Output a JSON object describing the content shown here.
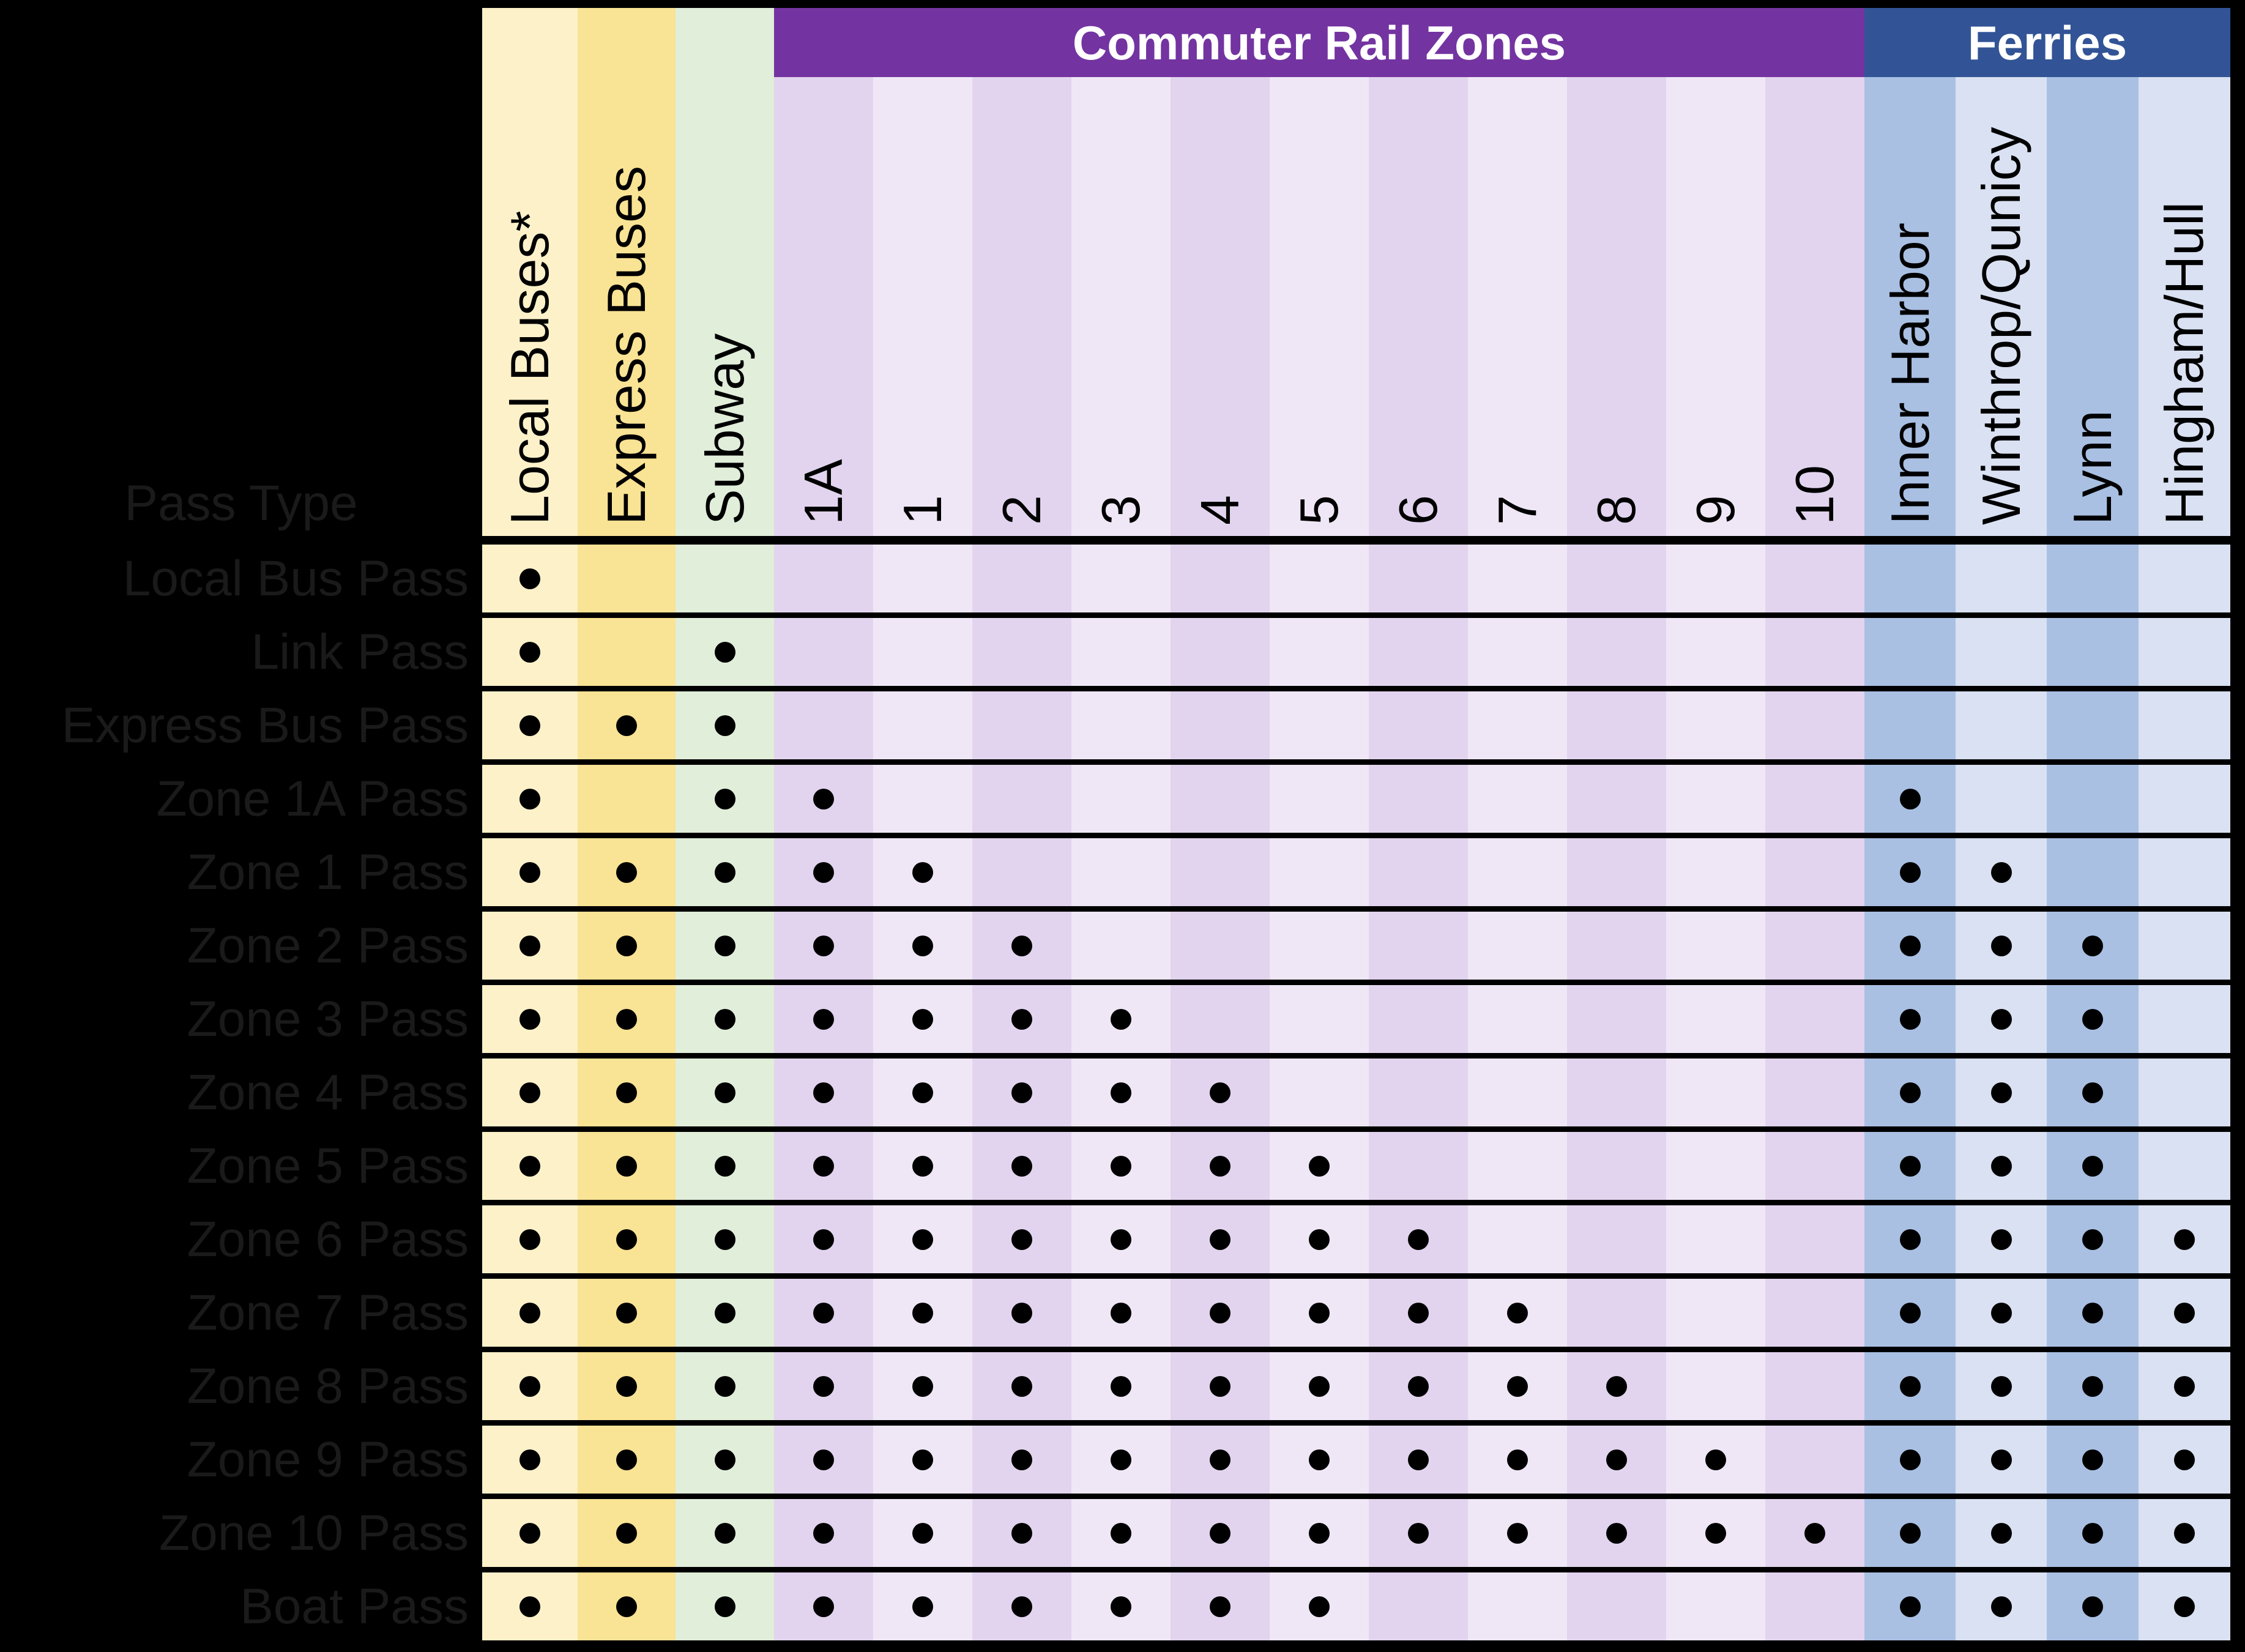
{
  "banners": {
    "rail": "Commuter Rail Zones",
    "ferries": "Ferries"
  },
  "chart_data": {
    "type": "table",
    "row_header": "Pass Type",
    "colors": {
      "background": "#000000",
      "yellow_light": "#FCF1C9",
      "yellow": "#F9E394",
      "green": "#E0EEDA",
      "rail_dark": "#E2D4EE",
      "rail_light": "#EFE7F6",
      "ferry_dark": "#A9C0E3",
      "ferry_light": "#D9E1F2",
      "rail_banner": "#7334A1",
      "ferry_banner": "#325496",
      "dot": "#000000",
      "row_label_text": "#1A1A1A",
      "banner_text": "#FFFFFF"
    },
    "column_groups": [
      {
        "id": "modes",
        "label": ""
      },
      {
        "id": "rail",
        "label": "Commuter Rail Zones"
      },
      {
        "id": "ferry",
        "label": "Ferries"
      }
    ],
    "columns": [
      {
        "id": "local_buses",
        "label": "Local Buses*",
        "group": "modes",
        "shade": "yellow_light"
      },
      {
        "id": "express_buses",
        "label": "Express Buses",
        "group": "modes",
        "shade": "yellow"
      },
      {
        "id": "subway",
        "label": "Subway",
        "group": "modes",
        "shade": "green"
      },
      {
        "id": "zone_1a",
        "label": "1A",
        "group": "rail",
        "shade": "rail_dark"
      },
      {
        "id": "zone_1",
        "label": "1",
        "group": "rail",
        "shade": "rail_light"
      },
      {
        "id": "zone_2",
        "label": "2",
        "group": "rail",
        "shade": "rail_dark"
      },
      {
        "id": "zone_3",
        "label": "3",
        "group": "rail",
        "shade": "rail_light"
      },
      {
        "id": "zone_4",
        "label": "4",
        "group": "rail",
        "shade": "rail_dark"
      },
      {
        "id": "zone_5",
        "label": "5",
        "group": "rail",
        "shade": "rail_light"
      },
      {
        "id": "zone_6",
        "label": "6",
        "group": "rail",
        "shade": "rail_dark"
      },
      {
        "id": "zone_7",
        "label": "7",
        "group": "rail",
        "shade": "rail_light"
      },
      {
        "id": "zone_8",
        "label": "8",
        "group": "rail",
        "shade": "rail_dark"
      },
      {
        "id": "zone_9",
        "label": "9",
        "group": "rail",
        "shade": "rail_light"
      },
      {
        "id": "zone_10",
        "label": "10",
        "group": "rail",
        "shade": "rail_dark"
      },
      {
        "id": "inner_harbor",
        "label": "Inner Harbor",
        "group": "ferry",
        "shade": "ferry_dark"
      },
      {
        "id": "winthrop_quincy",
        "label": "Winthrop/Qunicy",
        "group": "ferry",
        "shade": "ferry_light"
      },
      {
        "id": "lynn",
        "label": "Lynn",
        "group": "ferry",
        "shade": "ferry_dark"
      },
      {
        "id": "hingham_hull",
        "label": "Hingham/Hull",
        "group": "ferry",
        "shade": "ferry_light"
      }
    ],
    "rows": [
      {
        "label": "Local Bus Pass",
        "marks": [
          "local_buses"
        ]
      },
      {
        "label": "Link Pass",
        "marks": [
          "local_buses",
          "subway"
        ]
      },
      {
        "label": "Express Bus Pass",
        "marks": [
          "local_buses",
          "express_buses",
          "subway"
        ]
      },
      {
        "label": "Zone 1A Pass",
        "marks": [
          "local_buses",
          "subway",
          "zone_1a",
          "inner_harbor"
        ]
      },
      {
        "label": "Zone 1 Pass",
        "marks": [
          "local_buses",
          "express_buses",
          "subway",
          "zone_1a",
          "zone_1",
          "inner_harbor",
          "winthrop_quincy"
        ]
      },
      {
        "label": "Zone 2 Pass",
        "marks": [
          "local_buses",
          "express_buses",
          "subway",
          "zone_1a",
          "zone_1",
          "zone_2",
          "inner_harbor",
          "winthrop_quincy",
          "lynn"
        ]
      },
      {
        "label": "Zone 3 Pass",
        "marks": [
          "local_buses",
          "express_buses",
          "subway",
          "zone_1a",
          "zone_1",
          "zone_2",
          "zone_3",
          "inner_harbor",
          "winthrop_quincy",
          "lynn"
        ]
      },
      {
        "label": "Zone 4 Pass",
        "marks": [
          "local_buses",
          "express_buses",
          "subway",
          "zone_1a",
          "zone_1",
          "zone_2",
          "zone_3",
          "zone_4",
          "inner_harbor",
          "winthrop_quincy",
          "lynn"
        ]
      },
      {
        "label": "Zone 5 Pass",
        "marks": [
          "local_buses",
          "express_buses",
          "subway",
          "zone_1a",
          "zone_1",
          "zone_2",
          "zone_3",
          "zone_4",
          "zone_5",
          "inner_harbor",
          "winthrop_quincy",
          "lynn"
        ]
      },
      {
        "label": "Zone 6 Pass",
        "marks": [
          "local_buses",
          "express_buses",
          "subway",
          "zone_1a",
          "zone_1",
          "zone_2",
          "zone_3",
          "zone_4",
          "zone_5",
          "zone_6",
          "inner_harbor",
          "winthrop_quincy",
          "lynn",
          "hingham_hull"
        ]
      },
      {
        "label": "Zone 7 Pass",
        "marks": [
          "local_buses",
          "express_buses",
          "subway",
          "zone_1a",
          "zone_1",
          "zone_2",
          "zone_3",
          "zone_4",
          "zone_5",
          "zone_6",
          "zone_7",
          "inner_harbor",
          "winthrop_quincy",
          "lynn",
          "hingham_hull"
        ]
      },
      {
        "label": "Zone 8 Pass",
        "marks": [
          "local_buses",
          "express_buses",
          "subway",
          "zone_1a",
          "zone_1",
          "zone_2",
          "zone_3",
          "zone_4",
          "zone_5",
          "zone_6",
          "zone_7",
          "zone_8",
          "inner_harbor",
          "winthrop_quincy",
          "lynn",
          "hingham_hull"
        ]
      },
      {
        "label": "Zone 9 Pass",
        "marks": [
          "local_buses",
          "express_buses",
          "subway",
          "zone_1a",
          "zone_1",
          "zone_2",
          "zone_3",
          "zone_4",
          "zone_5",
          "zone_6",
          "zone_7",
          "zone_8",
          "zone_9",
          "inner_harbor",
          "winthrop_quincy",
          "lynn",
          "hingham_hull"
        ]
      },
      {
        "label": "Zone 10 Pass",
        "marks": [
          "local_buses",
          "express_buses",
          "subway",
          "zone_1a",
          "zone_1",
          "zone_2",
          "zone_3",
          "zone_4",
          "zone_5",
          "zone_6",
          "zone_7",
          "zone_8",
          "zone_9",
          "zone_10",
          "inner_harbor",
          "winthrop_quincy",
          "lynn",
          "hingham_hull"
        ]
      },
      {
        "label": "Boat Pass",
        "marks": [
          "local_buses",
          "express_buses",
          "subway",
          "zone_1a",
          "zone_1",
          "zone_2",
          "zone_3",
          "zone_4",
          "zone_5",
          "inner_harbor",
          "winthrop_quincy",
          "lynn",
          "hingham_hull"
        ]
      }
    ]
  }
}
